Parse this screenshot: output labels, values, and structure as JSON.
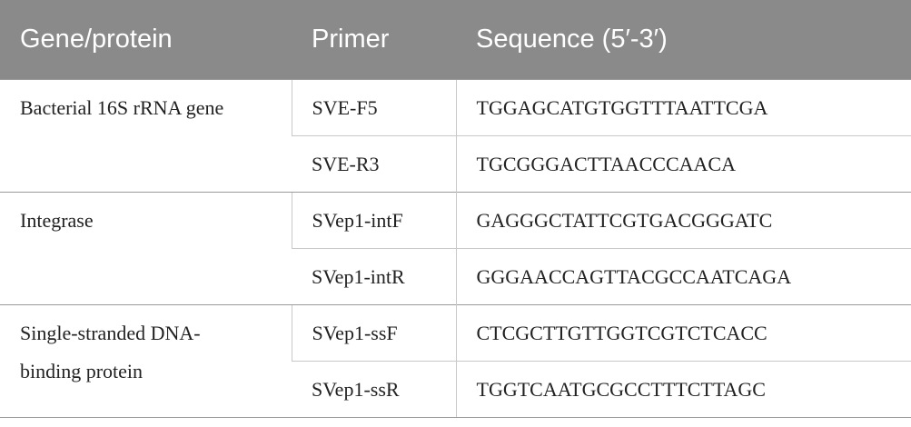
{
  "table": {
    "header": [
      "Gene/protein",
      "Primer",
      "Sequence (5′-3′)"
    ],
    "groups": [
      {
        "gene": "Bacterial 16S rRNA gene",
        "primers": [
          {
            "primer": "SVE-F5",
            "sequence": "TGGAGCATGTGGTTTAATTCGA"
          },
          {
            "primer": "SVE-R3",
            "sequence": "TGCGGGACTTAACCCAACA"
          }
        ]
      },
      {
        "gene": "Integrase",
        "primers": [
          {
            "primer": "SVep1-intF",
            "sequence": "GAGGGCTATTCGTGACGGGATC"
          },
          {
            "primer": "SVep1-intR",
            "sequence": "GGGAACCAGTTACGCCAATCAGA"
          }
        ]
      },
      {
        "gene": "Single-stranded DNA-binding protein",
        "primers": [
          {
            "primer": "SVep1-ssF",
            "sequence": "CTCGCTTGTTGGTCGTCTCACC"
          },
          {
            "primer": "SVep1-ssR",
            "sequence": "TGGTCAATGCGCCTTTCTTAGC"
          }
        ]
      }
    ]
  }
}
